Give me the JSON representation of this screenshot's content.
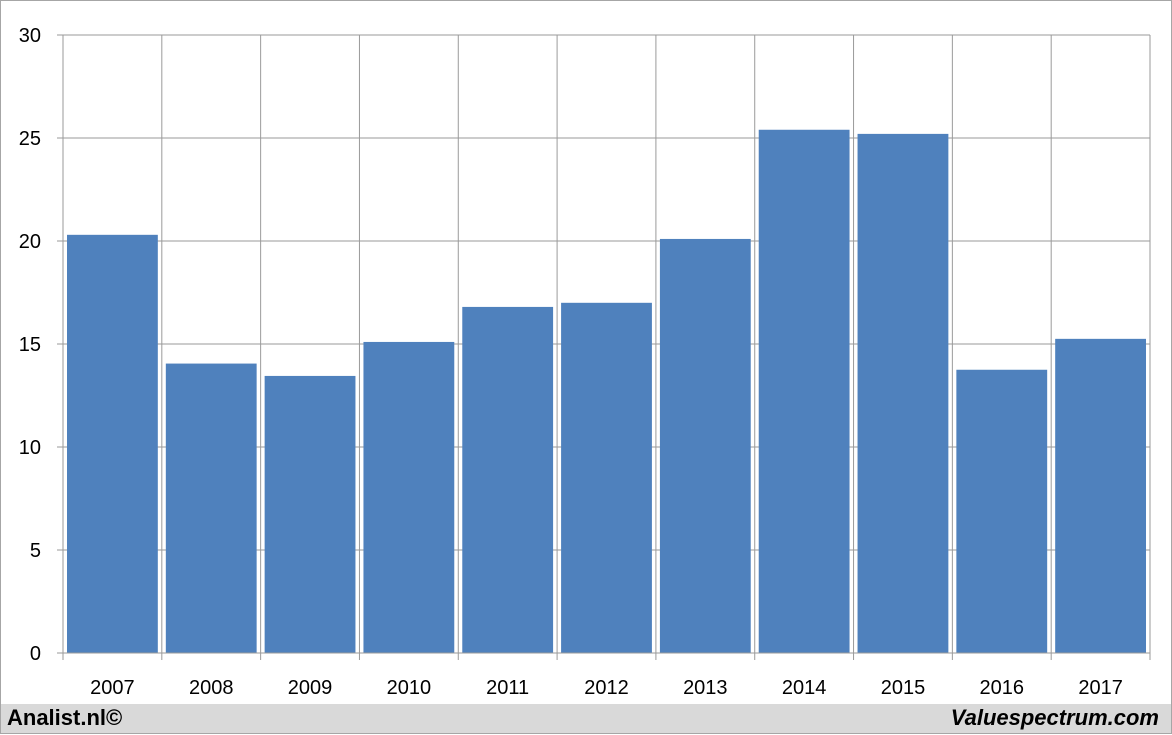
{
  "chart_data": {
    "type": "bar",
    "categories": [
      "2007",
      "2008",
      "2009",
      "2010",
      "2011",
      "2012",
      "2013",
      "2014",
      "2015",
      "2016",
      "2017"
    ],
    "values": [
      20.3,
      14.05,
      13.45,
      15.1,
      16.8,
      17.0,
      20.1,
      25.4,
      25.2,
      13.75,
      15.25
    ],
    "title": "",
    "xlabel": "",
    "ylabel": "",
    "ylim": [
      0,
      30
    ],
    "yticks": [
      "0",
      "5",
      "10",
      "15",
      "20",
      "25",
      "30"
    ],
    "grid": true,
    "bar_color": "#4f81bd"
  },
  "footer": {
    "left_label": "Analist.nl©",
    "right_label": "Valuespectrum.com"
  }
}
